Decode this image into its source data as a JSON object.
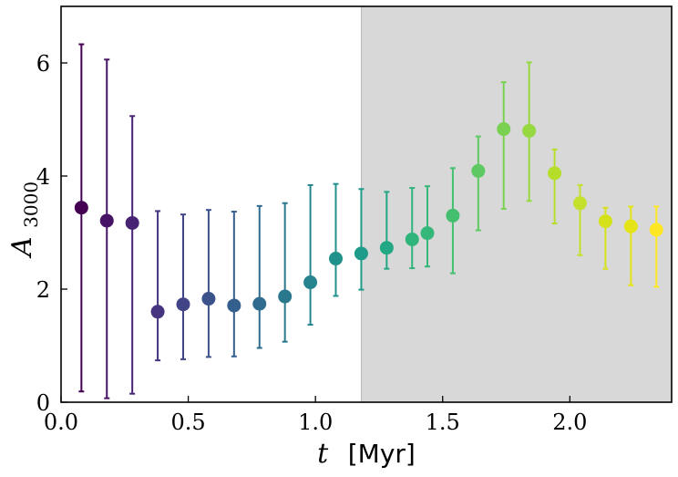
{
  "chart_data": {
    "type": "scatter",
    "xlabel": {
      "symbol": "t",
      "unit": "[Myr]"
    },
    "ylabel": {
      "symbol": "A",
      "subscript": "3000"
    },
    "xlim": [
      0.0,
      2.4
    ],
    "ylim": [
      0,
      7
    ],
    "xticks": [
      {
        "value": 0.0,
        "label": "0.0"
      },
      {
        "value": 0.5,
        "label": "0.5"
      },
      {
        "value": 1.0,
        "label": "1.0"
      },
      {
        "value": 1.5,
        "label": "1.5"
      },
      {
        "value": 2.0,
        "label": "2.0"
      }
    ],
    "yticks": [
      {
        "value": 0,
        "label": "0"
      },
      {
        "value": 2,
        "label": "2"
      },
      {
        "value": 4,
        "label": "4"
      },
      {
        "value": 6,
        "label": "6"
      }
    ],
    "shaded_region": {
      "x_start": 1.18,
      "x_end": 2.4,
      "color": "#d8d8d8"
    },
    "grid": false,
    "legend": "none",
    "colormap": "viridis",
    "points": [
      {
        "x": 0.08,
        "y": 3.44,
        "ylo": 0.19,
        "yhi": 6.33,
        "color": "#440154"
      },
      {
        "x": 0.18,
        "y": 3.21,
        "ylo": 0.07,
        "yhi": 6.06,
        "color": "#471365"
      },
      {
        "x": 0.28,
        "y": 3.17,
        "ylo": 0.15,
        "yhi": 5.06,
        "color": "#482475"
      },
      {
        "x": 0.38,
        "y": 1.6,
        "ylo": 0.74,
        "yhi": 3.38,
        "color": "#463480"
      },
      {
        "x": 0.48,
        "y": 1.73,
        "ylo": 0.76,
        "yhi": 3.32,
        "color": "#414487"
      },
      {
        "x": 0.58,
        "y": 1.83,
        "ylo": 0.8,
        "yhi": 3.4,
        "color": "#3b528b"
      },
      {
        "x": 0.68,
        "y": 1.71,
        "ylo": 0.81,
        "yhi": 3.37,
        "color": "#355f8d"
      },
      {
        "x": 0.78,
        "y": 1.74,
        "ylo": 0.96,
        "yhi": 3.47,
        "color": "#2f6c8e"
      },
      {
        "x": 0.88,
        "y": 1.87,
        "ylo": 1.07,
        "yhi": 3.52,
        "color": "#2a788e"
      },
      {
        "x": 0.98,
        "y": 2.12,
        "ylo": 1.37,
        "yhi": 3.84,
        "color": "#25848e"
      },
      {
        "x": 1.08,
        "y": 2.54,
        "ylo": 1.88,
        "yhi": 3.86,
        "color": "#21918c"
      },
      {
        "x": 1.18,
        "y": 2.63,
        "ylo": 1.99,
        "yhi": 3.77,
        "color": "#1e9c89"
      },
      {
        "x": 1.28,
        "y": 2.73,
        "ylo": 2.36,
        "yhi": 3.72,
        "color": "#22a884"
      },
      {
        "x": 1.38,
        "y": 2.88,
        "ylo": 2.37,
        "yhi": 3.79,
        "color": "#2fb47c"
      },
      {
        "x": 1.44,
        "y": 2.99,
        "ylo": 2.4,
        "yhi": 3.82,
        "color": "#35b779"
      },
      {
        "x": 1.54,
        "y": 3.3,
        "ylo": 2.28,
        "yhi": 4.14,
        "color": "#44bf70"
      },
      {
        "x": 1.64,
        "y": 4.09,
        "ylo": 3.04,
        "yhi": 4.7,
        "color": "#5ec962"
      },
      {
        "x": 1.74,
        "y": 4.83,
        "ylo": 3.42,
        "yhi": 5.66,
        "color": "#7ad151"
      },
      {
        "x": 1.84,
        "y": 4.8,
        "ylo": 3.56,
        "yhi": 6.01,
        "color": "#95d840"
      },
      {
        "x": 1.94,
        "y": 4.05,
        "ylo": 3.16,
        "yhi": 4.47,
        "color": "#b5de2b"
      },
      {
        "x": 2.04,
        "y": 3.52,
        "ylo": 2.6,
        "yhi": 3.84,
        "color": "#c4e02d"
      },
      {
        "x": 2.14,
        "y": 3.2,
        "ylo": 2.36,
        "yhi": 3.44,
        "color": "#d5e21a"
      },
      {
        "x": 2.24,
        "y": 3.11,
        "ylo": 2.07,
        "yhi": 3.46,
        "color": "#e5e419"
      },
      {
        "x": 2.34,
        "y": 3.05,
        "ylo": 2.04,
        "yhi": 3.46,
        "color": "#fde725"
      }
    ]
  }
}
